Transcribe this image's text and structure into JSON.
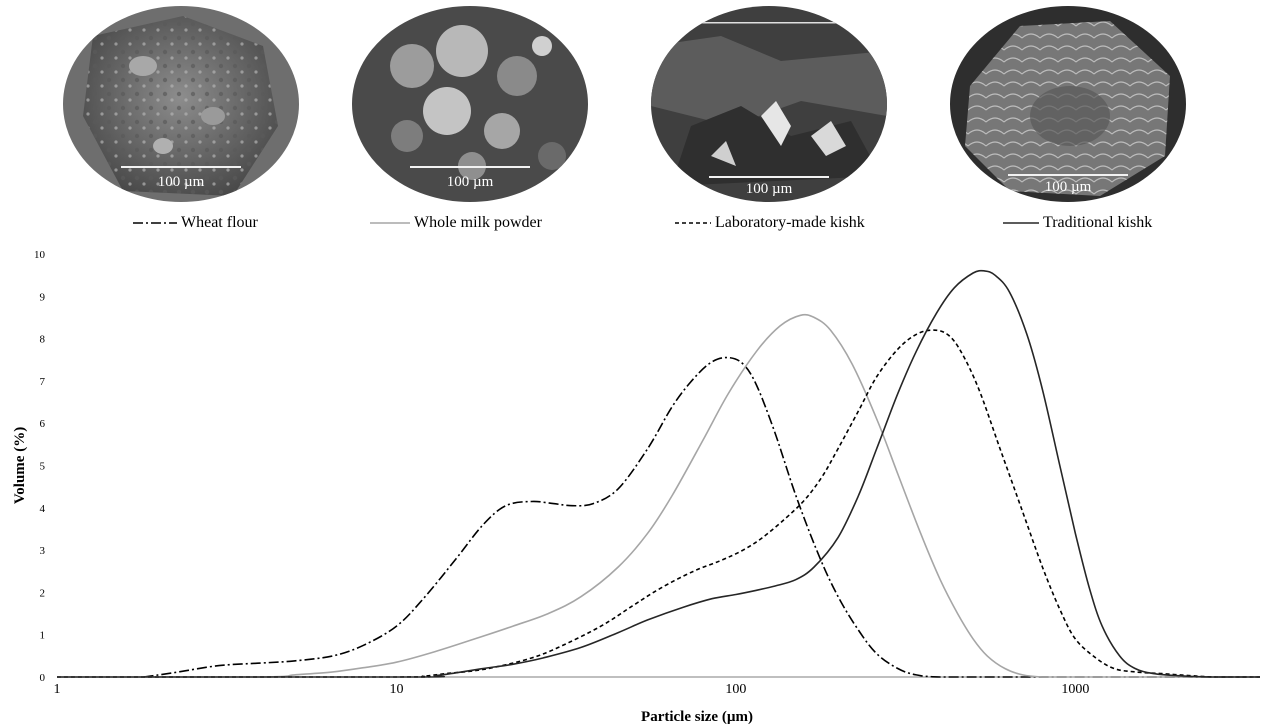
{
  "micrographs": [
    {
      "name": "wheat-flour-micrograph",
      "scale_label": "100 µm"
    },
    {
      "name": "whole-milk-powder-micrograph",
      "scale_label": "100 µm"
    },
    {
      "name": "laboratory-made-kishk-micrograph",
      "scale_label": "100 µm"
    },
    {
      "name": "traditional-kishk-micrograph",
      "scale_label": "100 µm"
    }
  ],
  "legend": [
    {
      "label": "Wheat flour",
      "style": "dash-dot",
      "color": "#000000"
    },
    {
      "label": "Whole milk powder",
      "style": "solid",
      "color": "#a6a6a6"
    },
    {
      "label": "Laboratory-made kishk",
      "style": "dashed",
      "color": "#000000"
    },
    {
      "label": "Traditional kishk",
      "style": "solid",
      "color": "#262626"
    }
  ],
  "chart_data": {
    "type": "line",
    "title": "",
    "xlabel": "Particle size (µm)",
    "ylabel": "Volume (%)",
    "x_scale": "log",
    "xlim": [
      1,
      3500
    ],
    "ylim": [
      0,
      10
    ],
    "x_ticks": [
      "1",
      "10",
      "100",
      "1000"
    ],
    "y_ticks": [
      "0",
      "1",
      "2",
      "3",
      "4",
      "5",
      "6",
      "7",
      "8",
      "9",
      "10"
    ],
    "grid": false,
    "legend_position": "top",
    "series": [
      {
        "name": "Wheat flour",
        "color": "#000000",
        "dash": "10,3,2,3",
        "points": [
          [
            1.8,
            0
          ],
          [
            2.2,
            0.1
          ],
          [
            3,
            0.27
          ],
          [
            4,
            0.33
          ],
          [
            5,
            0.38
          ],
          [
            6.5,
            0.5
          ],
          [
            8,
            0.75
          ],
          [
            10,
            1.2
          ],
          [
            12,
            1.85
          ],
          [
            15,
            2.8
          ],
          [
            18,
            3.6
          ],
          [
            21,
            4.05
          ],
          [
            25,
            4.15
          ],
          [
            29,
            4.1
          ],
          [
            33,
            4.05
          ],
          [
            38,
            4.1
          ],
          [
            45,
            4.45
          ],
          [
            55,
            5.4
          ],
          [
            65,
            6.4
          ],
          [
            75,
            7.05
          ],
          [
            85,
            7.45
          ],
          [
            95,
            7.55
          ],
          [
            105,
            7.4
          ],
          [
            115,
            6.9
          ],
          [
            130,
            5.8
          ],
          [
            150,
            4.3
          ],
          [
            175,
            2.9
          ],
          [
            200,
            1.9
          ],
          [
            230,
            1.1
          ],
          [
            260,
            0.55
          ],
          [
            300,
            0.2
          ],
          [
            340,
            0.05
          ],
          [
            400,
            0
          ],
          [
            600,
            0
          ],
          [
            1000,
            0
          ],
          [
            2000,
            0
          ],
          [
            3500,
            0
          ]
        ]
      },
      {
        "name": "Whole milk powder",
        "color": "#a6a6a6",
        "dash": "",
        "points": [
          [
            1,
            0
          ],
          [
            4,
            0
          ],
          [
            5,
            0.05
          ],
          [
            6.5,
            0.12
          ],
          [
            8,
            0.22
          ],
          [
            10,
            0.35
          ],
          [
            13,
            0.6
          ],
          [
            17,
            0.9
          ],
          [
            22,
            1.2
          ],
          [
            28,
            1.5
          ],
          [
            35,
            1.9
          ],
          [
            45,
            2.6
          ],
          [
            55,
            3.4
          ],
          [
            65,
            4.3
          ],
          [
            80,
            5.6
          ],
          [
            95,
            6.7
          ],
          [
            115,
            7.7
          ],
          [
            135,
            8.3
          ],
          [
            155,
            8.55
          ],
          [
            170,
            8.5
          ],
          [
            190,
            8.2
          ],
          [
            220,
            7.4
          ],
          [
            260,
            6.1
          ],
          [
            300,
            4.8
          ],
          [
            350,
            3.4
          ],
          [
            400,
            2.3
          ],
          [
            450,
            1.5
          ],
          [
            500,
            0.9
          ],
          [
            550,
            0.5
          ],
          [
            620,
            0.2
          ],
          [
            700,
            0.05
          ],
          [
            800,
            0
          ],
          [
            1000,
            0
          ],
          [
            3500,
            0
          ]
        ]
      },
      {
        "name": "Laboratory-made kishk",
        "color": "#000000",
        "dash": "4,3",
        "points": [
          [
            1,
            0
          ],
          [
            10,
            0
          ],
          [
            12,
            0.02
          ],
          [
            14,
            0.08
          ],
          [
            17,
            0.15
          ],
          [
            20,
            0.25
          ],
          [
            25,
            0.45
          ],
          [
            30,
            0.7
          ],
          [
            40,
            1.2
          ],
          [
            50,
            1.7
          ],
          [
            60,
            2.1
          ],
          [
            75,
            2.5
          ],
          [
            90,
            2.75
          ],
          [
            105,
            3.0
          ],
          [
            120,
            3.3
          ],
          [
            140,
            3.75
          ],
          [
            160,
            4.2
          ],
          [
            180,
            4.75
          ],
          [
            200,
            5.4
          ],
          [
            230,
            6.3
          ],
          [
            260,
            7.1
          ],
          [
            300,
            7.75
          ],
          [
            340,
            8.1
          ],
          [
            380,
            8.2
          ],
          [
            420,
            8.1
          ],
          [
            460,
            7.7
          ],
          [
            520,
            6.8
          ],
          [
            600,
            5.4
          ],
          [
            700,
            3.9
          ],
          [
            800,
            2.6
          ],
          [
            900,
            1.6
          ],
          [
            1000,
            0.9
          ],
          [
            1150,
            0.45
          ],
          [
            1300,
            0.2
          ],
          [
            1500,
            0.12
          ],
          [
            1800,
            0.08
          ],
          [
            2200,
            0.03
          ],
          [
            2600,
            0
          ],
          [
            3500,
            0
          ]
        ]
      },
      {
        "name": "Traditional kishk",
        "color": "#262626",
        "dash": "",
        "points": [
          [
            1,
            0
          ],
          [
            11,
            0
          ],
          [
            13,
            0.03
          ],
          [
            15,
            0.1
          ],
          [
            18,
            0.2
          ],
          [
            22,
            0.3
          ],
          [
            27,
            0.45
          ],
          [
            35,
            0.7
          ],
          [
            45,
            1.05
          ],
          [
            55,
            1.35
          ],
          [
            70,
            1.65
          ],
          [
            85,
            1.85
          ],
          [
            100,
            1.95
          ],
          [
            115,
            2.05
          ],
          [
            130,
            2.15
          ],
          [
            150,
            2.3
          ],
          [
            170,
            2.6
          ],
          [
            200,
            3.3
          ],
          [
            230,
            4.3
          ],
          [
            260,
            5.4
          ],
          [
            300,
            6.7
          ],
          [
            340,
            7.7
          ],
          [
            390,
            8.6
          ],
          [
            440,
            9.2
          ],
          [
            500,
            9.55
          ],
          [
            540,
            9.6
          ],
          [
            580,
            9.5
          ],
          [
            640,
            9.1
          ],
          [
            720,
            8.1
          ],
          [
            800,
            6.8
          ],
          [
            900,
            5.0
          ],
          [
            1000,
            3.4
          ],
          [
            1100,
            2.1
          ],
          [
            1200,
            1.2
          ],
          [
            1350,
            0.5
          ],
          [
            1500,
            0.2
          ],
          [
            1700,
            0.08
          ],
          [
            2000,
            0.03
          ],
          [
            2500,
            0
          ],
          [
            3500,
            0
          ]
        ]
      }
    ]
  }
}
